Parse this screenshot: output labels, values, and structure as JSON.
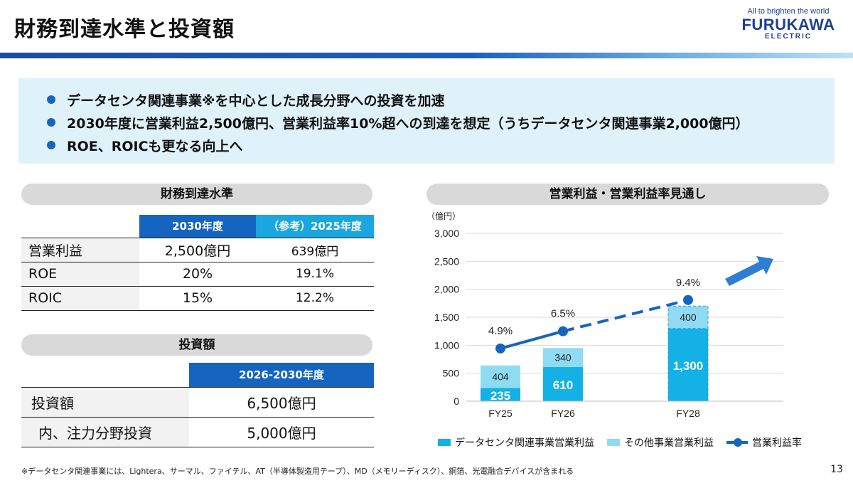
{
  "header": {
    "title": "財務到達水準と投資額"
  },
  "logo": {
    "tagline": "All to brighten the world",
    "wordmark": "FURUKAWA",
    "sub": "ELECTRIC"
  },
  "key_points": [
    "データセンタ関連事業※を中心とした成長分野への投資を加速",
    "2030年度に営業利益2,500億円、営業利益率10%超への到達を想定（うちデータセンタ関連事業2,000億円）",
    "ROE、ROICも更なる向上へ"
  ],
  "financial": {
    "section_title": "財務到達水準",
    "headers": [
      "2030年度",
      "（参考）2025年度"
    ],
    "rows": [
      {
        "label": "営業利益",
        "v2030": "2,500億円",
        "v2025": "639億円"
      },
      {
        "label": "ROE",
        "v2030": "20%",
        "v2025": "19.1%"
      },
      {
        "label": "ROIC",
        "v2030": "15%",
        "v2025": "12.2%"
      }
    ]
  },
  "investment": {
    "section_title": "投資額",
    "header": "2026-2030年度",
    "rows": [
      {
        "label": "投資額",
        "value": "6,500億円"
      },
      {
        "label": "内、注力分野投資",
        "value": "5,000億円"
      }
    ]
  },
  "chart_data": {
    "type": "bar",
    "title": "営業利益・営業利益率見通し",
    "unit_label": "（億円）",
    "categories": [
      "FY25",
      "FY26",
      "FY28"
    ],
    "series": [
      {
        "name": "データセンタ関連事業営業利益",
        "values": [
          235,
          610,
          1300
        ],
        "color": "#14b1e6"
      },
      {
        "name": "その他事業営業利益",
        "values": [
          404,
          340,
          400
        ],
        "color": "#8fdcf2"
      }
    ],
    "line_series": {
      "name": "営業利益率",
      "labels": [
        "4.9%",
        "6.5%",
        "9.4%"
      ],
      "values": [
        4.9,
        6.5,
        9.4
      ],
      "color": "#1565c0"
    },
    "ylim": [
      0,
      3000
    ],
    "yticks": [
      "0",
      "500",
      "1,000",
      "1,500",
      "2,000",
      "2,500",
      "3,000"
    ],
    "ytick_values": [
      0,
      500,
      1000,
      1500,
      2000,
      2500,
      3000
    ],
    "bar_labels": [
      [
        "235",
        "404"
      ],
      [
        "610",
        "340"
      ],
      [
        "1,300",
        "400"
      ]
    ],
    "legend": "bottom",
    "grid": true,
    "arrow_color": "#2e7fd1"
  },
  "footnote": "※データセンタ関連事業には、Lightera、サーマル、ファイテル、AT（半導体製造用テープ）、MD（メモリーディスク）、銅箔、光電融合デバイスが含まれる",
  "page_number": "13"
}
